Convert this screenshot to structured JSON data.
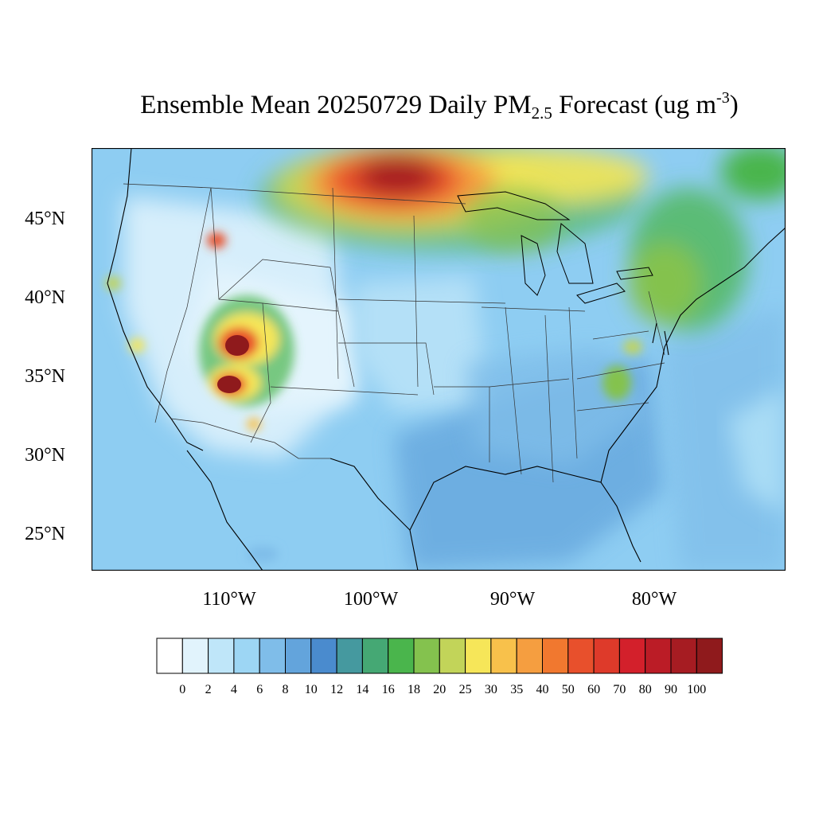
{
  "title": {
    "prefix": "Ensemble Mean 20250729 Daily PM",
    "subscript": "2.5",
    "middle": " Forecast (ug m",
    "superscript": "-3",
    "suffix": ")"
  },
  "map": {
    "projection": "lambert-conformal",
    "region": "Contiguous United States",
    "lat_labels": [
      "45°N",
      "40°N",
      "35°N",
      "30°N",
      "25°N"
    ],
    "lon_labels": [
      "110°W",
      "100°W",
      "90°W",
      "80°W"
    ],
    "background_color": "#8ecdf2",
    "features": [
      {
        "name": "canada-smoke-plume",
        "level": "90-100+"
      },
      {
        "name": "northeast-smoke",
        "level": "14-25"
      },
      {
        "name": "utah-fire-north",
        "level": "100+"
      },
      {
        "name": "arizona-fire",
        "level": "100+"
      },
      {
        "name": "idaho-fire",
        "level": "50-70"
      },
      {
        "name": "california-fire-north",
        "level": "20-30"
      },
      {
        "name": "california-fire-south",
        "level": "20-35"
      },
      {
        "name": "new-mexico-fire",
        "level": "20-35"
      },
      {
        "name": "carolina-smoke",
        "level": "16-25"
      }
    ]
  },
  "colorbar": {
    "labels": [
      "0",
      "2",
      "4",
      "6",
      "8",
      "10",
      "12",
      "14",
      "16",
      "18",
      "20",
      "25",
      "30",
      "35",
      "40",
      "50",
      "60",
      "70",
      "80",
      "90",
      "100"
    ],
    "colors": [
      "#ffffff",
      "#e1f3fc",
      "#bfe6f9",
      "#9dd6f4",
      "#7fbde9",
      "#63a4dc",
      "#4a8bce",
      "#45999f",
      "#45a874",
      "#4ab54c",
      "#84c24e",
      "#c2d459",
      "#f6e659",
      "#f8c14b",
      "#f59e40",
      "#f1782f",
      "#e8502c",
      "#de3a2a",
      "#d3202b",
      "#bb1c26",
      "#a61c22",
      "#8f1a1c"
    ]
  }
}
